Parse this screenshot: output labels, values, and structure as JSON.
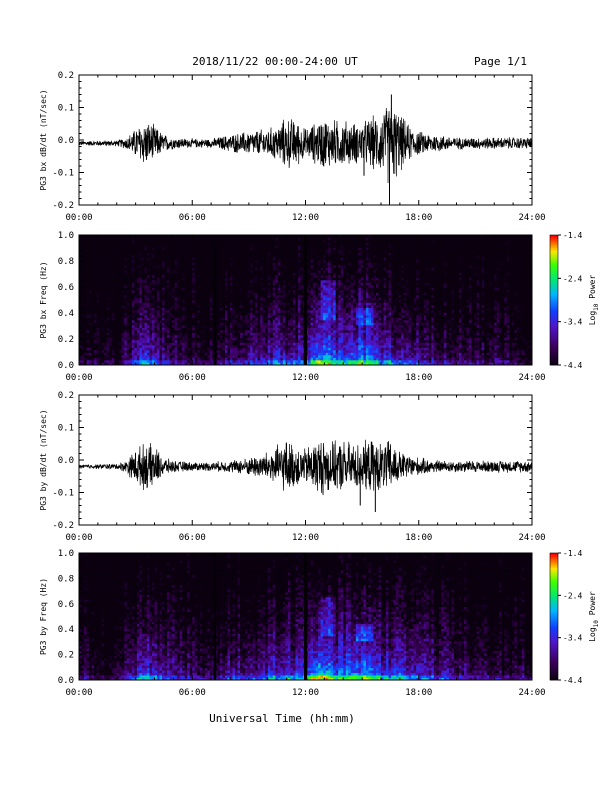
{
  "header": {
    "title": "2018/11/22  00:00-24:00 UT",
    "page": "Page 1/1"
  },
  "xlabel_bottom": "Universal Time (hh:mm)",
  "chart_data": [
    {
      "type": "line",
      "ylabel": "PG3 bx dB/dt (nT/sec)",
      "ylim": [
        -0.2,
        0.2
      ],
      "yticks": [
        "0.2",
        "0.1",
        "0.0",
        "-0.1",
        "-0.2"
      ],
      "xticks": [
        "00:00",
        "06:00",
        "12:00",
        "18:00",
        "24:00"
      ],
      "xlim_hours": [
        0,
        24
      ],
      "baseline": -0.01,
      "envelope": {
        "hours": [
          0,
          2,
          2.5,
          3,
          3.5,
          4,
          4.5,
          5,
          6,
          7,
          8,
          9,
          10,
          10.5,
          11,
          11.5,
          12,
          12.5,
          13,
          13.5,
          14,
          14.5,
          15,
          15.5,
          16,
          16.5,
          17,
          17.5,
          18,
          19,
          20,
          21,
          22,
          23,
          24
        ],
        "max_dev": [
          0.008,
          0.01,
          0.02,
          0.05,
          0.08,
          0.06,
          0.03,
          0.02,
          0.015,
          0.015,
          0.03,
          0.04,
          0.05,
          0.06,
          0.09,
          0.08,
          0.05,
          0.07,
          0.09,
          0.08,
          0.08,
          0.07,
          0.07,
          0.09,
          0.1,
          0.15,
          0.1,
          0.06,
          0.04,
          0.03,
          0.02,
          0.02,
          0.02,
          0.02,
          0.02
        ]
      },
      "spikes": [
        {
          "hour": 16.55,
          "value": 0.14
        },
        {
          "hour": 16.45,
          "value": -0.2
        },
        {
          "hour": 15.1,
          "value": -0.11
        }
      ]
    },
    {
      "type": "heatmap",
      "ylabel": "PG3 bx Freq (Hz)",
      "ylim": [
        0.0,
        1.0
      ],
      "yticks": [
        "1.0",
        "0.8",
        "0.6",
        "0.4",
        "0.2",
        "0.0"
      ],
      "xticks": [
        "00:00",
        "06:00",
        "12:00",
        "18:00",
        "24:00"
      ],
      "xlim_hours": [
        0,
        24
      ],
      "colorbar": {
        "label": "Log10 Power",
        "label_main": "Log",
        "label_sub": "10",
        "label_tail": " Power",
        "ticks": [
          "-1.4",
          "-2.4",
          "-3.4",
          "-4.4"
        ],
        "range": [
          -4.4,
          -1.4
        ]
      },
      "dark_gaps_hours": [
        7.2,
        12.0
      ],
      "activity": {
        "hours": [
          0,
          2,
          3,
          3.5,
          4,
          5,
          6,
          7,
          8,
          9,
          10,
          11,
          12,
          12.5,
          13,
          13.5,
          14,
          15,
          15.5,
          16,
          17,
          18,
          19,
          20,
          21,
          22,
          23,
          24
        ],
        "level": [
          0.25,
          0.25,
          0.45,
          0.6,
          0.5,
          0.35,
          0.3,
          0.3,
          0.4,
          0.45,
          0.5,
          0.55,
          0.5,
          0.8,
          0.85,
          0.7,
          0.65,
          0.75,
          0.7,
          0.6,
          0.55,
          0.45,
          0.4,
          0.35,
          0.3,
          0.3,
          0.25,
          0.25
        ]
      }
    },
    {
      "type": "line",
      "ylabel": "PG3 by dB/dt (nT/sec)",
      "ylim": [
        -0.2,
        0.2
      ],
      "yticks": [
        "0.2",
        "0.1",
        "0.0",
        "-0.1",
        "-0.2"
      ],
      "xticks": [
        "00:00",
        "06:00",
        "12:00",
        "18:00",
        "24:00"
      ],
      "xlim_hours": [
        0,
        24
      ],
      "baseline": -0.02,
      "envelope": {
        "hours": [
          0,
          2,
          2.5,
          3,
          3.5,
          4,
          4.5,
          5,
          6,
          7,
          8,
          9,
          10,
          10.5,
          11,
          11.5,
          12,
          12.5,
          13,
          13.5,
          14,
          14.5,
          15,
          15.5,
          16,
          16.5,
          17,
          17.5,
          18,
          19,
          20,
          21,
          22,
          23,
          24
        ],
        "max_dev": [
          0.006,
          0.01,
          0.02,
          0.06,
          0.08,
          0.07,
          0.03,
          0.02,
          0.015,
          0.015,
          0.02,
          0.03,
          0.05,
          0.07,
          0.09,
          0.07,
          0.06,
          0.09,
          0.1,
          0.08,
          0.09,
          0.08,
          0.08,
          0.09,
          0.08,
          0.09,
          0.05,
          0.04,
          0.03,
          0.02,
          0.02,
          0.02,
          0.02,
          0.02,
          0.02
        ]
      },
      "spikes": [
        {
          "hour": 14.9,
          "value": -0.14
        },
        {
          "hour": 15.7,
          "value": -0.16
        }
      ]
    },
    {
      "type": "heatmap",
      "ylabel": "PG3 by Freq (Hz)",
      "ylim": [
        0.0,
        1.0
      ],
      "yticks": [
        "1.0",
        "0.8",
        "0.6",
        "0.4",
        "0.2",
        "0.0"
      ],
      "xticks": [
        "00:00",
        "06:00",
        "12:00",
        "18:00",
        "24:00"
      ],
      "xlim_hours": [
        0,
        24
      ],
      "colorbar": {
        "label": "Log10 Power",
        "label_main": "Log",
        "label_sub": "10",
        "label_tail": " Power",
        "ticks": [
          "-1.4",
          "-2.4",
          "-3.4",
          "-4.4"
        ],
        "range": [
          -4.4,
          -1.4
        ]
      },
      "dark_gaps_hours": [
        7.2,
        12.0
      ],
      "activity": {
        "hours": [
          0,
          2,
          3,
          3.5,
          4,
          5,
          6,
          7,
          8,
          9,
          10,
          11,
          12,
          12.5,
          13,
          13.5,
          14,
          15,
          15.5,
          16,
          17,
          18,
          19,
          20,
          21,
          22,
          23,
          24
        ],
        "level": [
          0.3,
          0.3,
          0.5,
          0.65,
          0.55,
          0.4,
          0.35,
          0.35,
          0.45,
          0.5,
          0.55,
          0.6,
          0.55,
          0.85,
          0.9,
          0.75,
          0.7,
          0.8,
          0.75,
          0.65,
          0.6,
          0.5,
          0.45,
          0.4,
          0.35,
          0.35,
          0.3,
          0.3
        ]
      }
    }
  ]
}
